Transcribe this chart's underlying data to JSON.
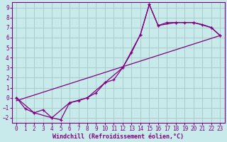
{
  "title": "",
  "xlabel": "Windchill (Refroidissement éolien,°C)",
  "ylabel": "",
  "xlim": [
    -0.5,
    23.5
  ],
  "ylim": [
    -2.5,
    9.5
  ],
  "xticks": [
    0,
    1,
    2,
    3,
    4,
    5,
    6,
    7,
    8,
    9,
    10,
    11,
    12,
    13,
    14,
    15,
    16,
    17,
    18,
    19,
    20,
    21,
    22,
    23
  ],
  "yticks": [
    -2,
    -1,
    0,
    1,
    2,
    3,
    4,
    5,
    6,
    7,
    8,
    9
  ],
  "bg_color": "#c8eaea",
  "grid_color": "#aacccc",
  "line_color": "#800080",
  "line1_x": [
    0,
    1,
    2,
    3,
    4,
    5,
    6,
    7,
    8,
    9,
    10,
    11,
    12,
    13,
    14,
    15,
    16,
    17,
    18,
    19,
    20,
    21,
    22,
    23
  ],
  "line1_y": [
    0.0,
    -1.1,
    -1.5,
    -1.2,
    -2.0,
    -2.2,
    -0.5,
    -0.3,
    0.0,
    0.5,
    1.5,
    1.8,
    3.0,
    4.5,
    6.3,
    9.3,
    7.2,
    7.5,
    7.5,
    7.5,
    7.5,
    7.3,
    7.0,
    6.2
  ],
  "line2_x": [
    0,
    2,
    4,
    6,
    8,
    10,
    12,
    14,
    15,
    16,
    18,
    20,
    22,
    23
  ],
  "line2_y": [
    0.0,
    -1.5,
    -2.0,
    -0.5,
    0.0,
    1.5,
    3.0,
    6.3,
    9.3,
    7.2,
    7.5,
    7.5,
    7.0,
    6.2
  ],
  "line3_x": [
    0,
    23
  ],
  "line3_y": [
    -0.3,
    6.2
  ],
  "xlabel_fontsize": 6,
  "tick_fontsize": 5.5
}
